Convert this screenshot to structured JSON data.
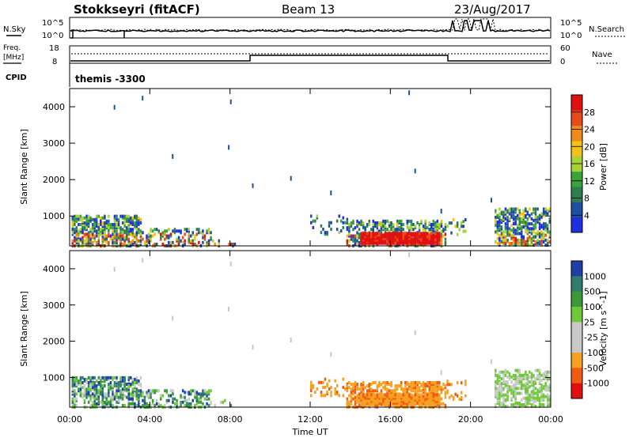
{
  "header": {
    "station": "Stokkseyri (fitACF)",
    "beam": "Beam 13",
    "date": "23/Aug/2017"
  },
  "noise_panel": {
    "left_label": "N.Sky",
    "right_label": "N.Search",
    "left_ticks": [
      "10^5",
      "10^0"
    ],
    "right_ticks": [
      "10^5",
      "10^0"
    ]
  },
  "freq_panel": {
    "left_label_line1": "Freq.",
    "left_label_line2": "[MHz]",
    "right_label": "Nave",
    "left_ticks": [
      "18",
      "8"
    ],
    "right_ticks": [
      "60",
      "0"
    ]
  },
  "cpid_panel": {
    "label": "CPID",
    "value": "themis -3300"
  },
  "colors": {
    "power_scale": [
      "#1f2fe0",
      "#1f4fa0",
      "#2e7d4f",
      "#3aa33a",
      "#a7d23a",
      "#f2c21a",
      "#f08a1a",
      "#e84a1a",
      "#e01010"
    ],
    "velocity_scale": [
      "#e01010",
      "#f25a10",
      "#f5a020",
      "#c8c8c8",
      "#c8c8c8",
      "#6fc83a",
      "#3a9a3a",
      "#2e7d6f",
      "#1f3fa8"
    ]
  },
  "chart_data": [
    {
      "type": "heatmap",
      "quantity": "Power",
      "ylabel": "Slant Range [km]",
      "xlabel": "",
      "x_ticks": [
        "00:00",
        "04:00",
        "08:00",
        "12:00",
        "16:00",
        "20:00",
        "00:00"
      ],
      "y_ticks": [
        1000,
        2000,
        3000,
        4000
      ],
      "ylim": [
        180,
        4500
      ],
      "colorbar_label": "Power [dB]",
      "colorbar_ticks": [
        "4",
        "8",
        "12",
        "16",
        "20",
        "24",
        "28"
      ],
      "colorbar_range": [
        0,
        32
      ]
    },
    {
      "type": "heatmap",
      "quantity": "Velocity",
      "ylabel": "Slant Range [km]",
      "xlabel": "Time UT",
      "x_ticks": [
        "00:00",
        "04:00",
        "08:00",
        "12:00",
        "16:00",
        "20:00",
        "00:00"
      ],
      "y_ticks": [
        1000,
        2000,
        3000,
        4000
      ],
      "ylim": [
        180,
        4500
      ],
      "colorbar_label": "Velocity [m s^-1]",
      "colorbar_ticks": [
        "1000",
        "500",
        "100",
        "25",
        "-25",
        "-100",
        "-500",
        "-1000"
      ]
    }
  ]
}
